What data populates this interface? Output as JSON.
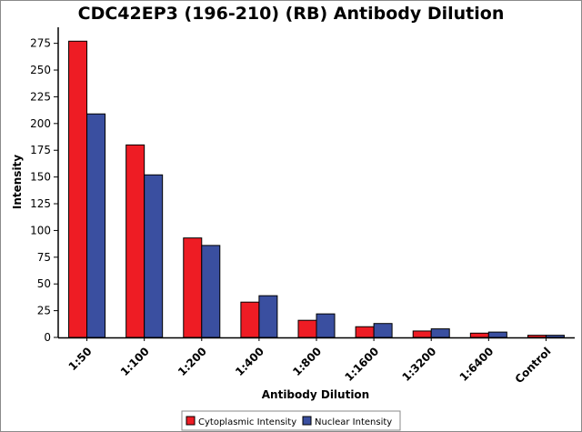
{
  "chart_data": {
    "type": "bar",
    "title": "CDC42EP3 (196-210) (RB) Antibody Dilution",
    "xlabel": "Antibody Dilution",
    "ylabel": "Intensity",
    "categories": [
      "1:50",
      "1:100",
      "1:200",
      "1:400",
      "1:800",
      "1:1600",
      "1:3200",
      "1:6400",
      "Control"
    ],
    "series": [
      {
        "name": "Cytoplasmic Intensity",
        "color": "#ee1c24",
        "values": [
          277,
          180,
          93,
          33,
          16,
          10,
          6,
          4,
          2
        ]
      },
      {
        "name": "Nuclear Intensity",
        "color": "#3a4fa0",
        "values": [
          209,
          152,
          86,
          39,
          22,
          13,
          8,
          5,
          2
        ]
      }
    ],
    "ylim": [
      0,
      290
    ],
    "yticks": [
      0,
      25,
      50,
      75,
      100,
      125,
      150,
      175,
      200,
      225,
      250,
      275
    ],
    "grid": false,
    "legend_position": "bottom-center"
  }
}
